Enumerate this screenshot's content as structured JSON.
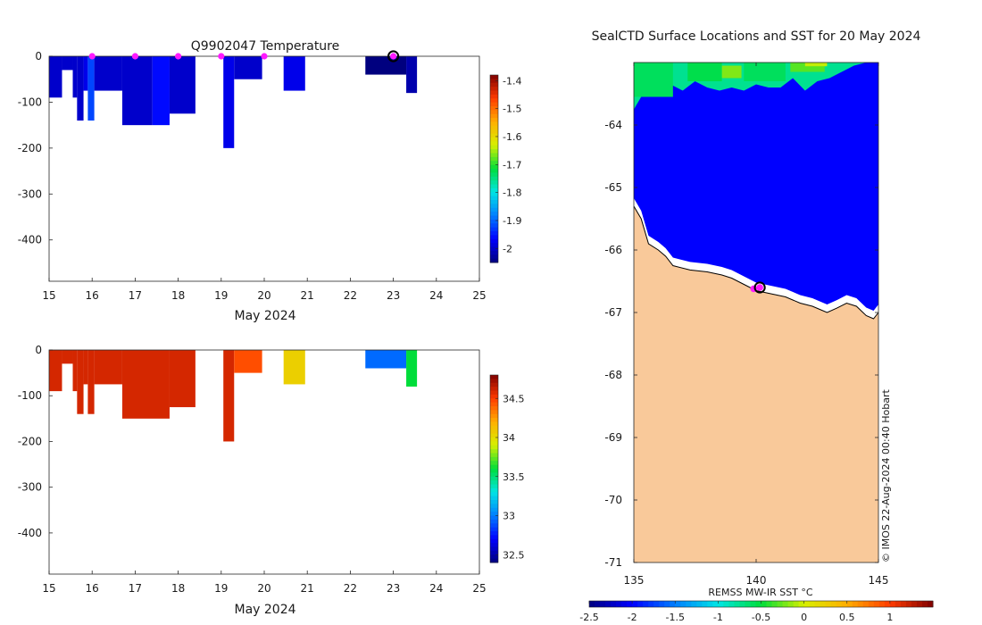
{
  "chart_data": [
    {
      "type": "heatmap",
      "title": "Q9902047  Temperature",
      "xlabel": "May 2024",
      "x_ticks": [
        15,
        16,
        17,
        18,
        19,
        20,
        21,
        22,
        23,
        24,
        25
      ],
      "xlim": [
        15,
        25
      ],
      "ylim": [
        -490,
        0
      ],
      "y_ticks": [
        0,
        -100,
        -200,
        -300,
        -400
      ],
      "colorbar": {
        "vmin": -2.05,
        "vmax": -1.38,
        "ticks": [
          -1.4,
          -1.5,
          -1.6,
          -1.7,
          -1.8,
          -1.9,
          -2
        ]
      },
      "profile_markers": [
        16,
        17,
        18,
        19,
        20
      ],
      "current_marker": 23,
      "marker_color": "#ff1aff",
      "cells": [
        {
          "x0": 15.0,
          "x1": 15.3,
          "depth": 90,
          "value": -2.0
        },
        {
          "x0": 15.3,
          "x1": 15.55,
          "depth": 30,
          "value": -2.0
        },
        {
          "x0": 15.55,
          "x1": 15.65,
          "depth": 90,
          "value": -2.0
        },
        {
          "x0": 15.65,
          "x1": 15.8,
          "depth": 140,
          "value": -2.0
        },
        {
          "x0": 15.8,
          "x1": 15.9,
          "depth": 75,
          "value": -1.98
        },
        {
          "x0": 15.9,
          "x1": 16.05,
          "depth": 140,
          "value": -1.92
        },
        {
          "x0": 16.05,
          "x1": 16.7,
          "depth": 75,
          "value": -2.0
        },
        {
          "x0": 16.7,
          "x1": 17.4,
          "depth": 150,
          "value": -2.0
        },
        {
          "x0": 17.4,
          "x1": 17.8,
          "depth": 150,
          "value": -1.96
        },
        {
          "x0": 17.8,
          "x1": 18.4,
          "depth": 125,
          "value": -2.0
        },
        {
          "x0": 19.05,
          "x1": 19.3,
          "depth": 200,
          "value": -1.98
        },
        {
          "x0": 19.3,
          "x1": 19.95,
          "depth": 50,
          "value": -2.0
        },
        {
          "x0": 20.45,
          "x1": 20.95,
          "depth": 75,
          "value": -1.98
        },
        {
          "x0": 22.35,
          "x1": 23.3,
          "depth": 40,
          "value": -2.05
        },
        {
          "x0": 23.3,
          "x1": 23.55,
          "depth": 80,
          "value": -2.02
        }
      ]
    },
    {
      "type": "heatmap",
      "title": "",
      "xlabel": "May 2024",
      "x_ticks": [
        15,
        16,
        17,
        18,
        19,
        20,
        21,
        22,
        23,
        24,
        25
      ],
      "xlim": [
        15,
        25
      ],
      "ylim": [
        -490,
        0
      ],
      "y_ticks": [
        0,
        -100,
        -200,
        -300,
        -400
      ],
      "colorbar": {
        "vmin": 32.4,
        "vmax": 34.8,
        "ticks": [
          34.5,
          34,
          33.5,
          33,
          32.5
        ]
      },
      "cells": [
        {
          "x0": 15.0,
          "x1": 15.3,
          "depth": 90,
          "value": 34.6
        },
        {
          "x0": 15.3,
          "x1": 15.55,
          "depth": 30,
          "value": 34.6
        },
        {
          "x0": 15.55,
          "x1": 15.65,
          "depth": 90,
          "value": 34.6
        },
        {
          "x0": 15.65,
          "x1": 15.8,
          "depth": 140,
          "value": 34.6
        },
        {
          "x0": 15.8,
          "x1": 15.9,
          "depth": 75,
          "value": 34.6
        },
        {
          "x0": 15.9,
          "x1": 16.05,
          "depth": 140,
          "value": 34.6
        },
        {
          "x0": 16.05,
          "x1": 16.7,
          "depth": 75,
          "value": 34.6
        },
        {
          "x0": 16.7,
          "x1": 17.8,
          "depth": 150,
          "value": 34.6
        },
        {
          "x0": 17.8,
          "x1": 18.4,
          "depth": 125,
          "value": 34.6
        },
        {
          "x0": 19.05,
          "x1": 19.3,
          "depth": 200,
          "value": 34.6
        },
        {
          "x0": 19.3,
          "x1": 19.95,
          "depth": 50,
          "value": 34.45
        },
        {
          "x0": 20.45,
          "x1": 20.95,
          "depth": 75,
          "value": 34.05
        },
        {
          "x0": 22.35,
          "x1": 23.3,
          "depth": 40,
          "value": 32.95
        },
        {
          "x0": 23.3,
          "x1": 23.55,
          "depth": 80,
          "value": 33.6
        }
      ]
    },
    {
      "type": "heatmap",
      "title": "SealCTD Surface Locations and SST for 20 May 2024",
      "xlim": [
        135,
        145
      ],
      "ylim": [
        -71,
        -63
      ],
      "x_ticks": [
        135,
        140,
        145
      ],
      "y_ticks": [
        -64,
        -65,
        -66,
        -67,
        -68,
        -69,
        -70,
        -71
      ],
      "colorbar_label": "REMSS MW-IR SST °C",
      "colorbar": {
        "vmin": -2.5,
        "vmax": 1.5,
        "ticks": [
          "-2.5",
          "-2",
          "-1.5",
          "-1",
          "-0.5",
          "0",
          "0.5",
          "1"
        ]
      },
      "ocean_value": -2.0,
      "land_color": "#f9c99a",
      "credit": "© IMOS 22-Aug-2024 00:40 Hobart",
      "coastline": [
        [
          135.0,
          -65.3
        ],
        [
          135.3,
          -65.5
        ],
        [
          135.6,
          -65.9
        ],
        [
          136.0,
          -66.0
        ],
        [
          136.3,
          -66.1
        ],
        [
          136.6,
          -66.25
        ],
        [
          137.3,
          -66.32
        ],
        [
          138.0,
          -66.35
        ],
        [
          138.6,
          -66.4
        ],
        [
          139.0,
          -66.45
        ],
        [
          139.5,
          -66.55
        ],
        [
          140.0,
          -66.65
        ],
        [
          140.6,
          -66.7
        ],
        [
          141.2,
          -66.75
        ],
        [
          141.8,
          -66.85
        ],
        [
          142.3,
          -66.9
        ],
        [
          142.6,
          -66.95
        ],
        [
          142.9,
          -67.0
        ],
        [
          143.3,
          -66.93
        ],
        [
          143.7,
          -66.85
        ],
        [
          144.1,
          -66.9
        ],
        [
          144.5,
          -67.05
        ],
        [
          144.8,
          -67.1
        ],
        [
          145.0,
          -67.0
        ]
      ],
      "warm_edge": [
        [
          135.0,
          -63.75
        ],
        [
          135.3,
          -63.55
        ],
        [
          135.6,
          -63.45
        ],
        [
          136.0,
          -63.45
        ],
        [
          136.5,
          -63.35
        ],
        [
          137.0,
          -63.45
        ],
        [
          137.5,
          -63.3
        ],
        [
          138.0,
          -63.4
        ],
        [
          138.5,
          -63.45
        ],
        [
          139.0,
          -63.4
        ],
        [
          139.5,
          -63.45
        ],
        [
          140.0,
          -63.35
        ],
        [
          140.5,
          -63.4
        ],
        [
          141.0,
          -63.4
        ],
        [
          141.5,
          -63.25
        ],
        [
          142.0,
          -63.45
        ],
        [
          142.5,
          -63.3
        ],
        [
          143.0,
          -63.25
        ],
        [
          143.5,
          -63.15
        ],
        [
          144.0,
          -63.05
        ],
        [
          144.5,
          -63.0
        ],
        [
          145.0,
          -63.0
        ]
      ],
      "warm_patches": [
        {
          "lon0": 135.0,
          "lon1": 136.6,
          "lat0": -63.0,
          "lat1": -63.55,
          "value": -0.6
        },
        {
          "lon0": 137.2,
          "lon1": 138.6,
          "lat0": -63.0,
          "lat1": -63.3,
          "value": -0.55
        },
        {
          "lon0": 138.6,
          "lon1": 139.4,
          "lat0": -63.05,
          "lat1": -63.25,
          "value": -0.2
        },
        {
          "lon0": 139.5,
          "lon1": 141.2,
          "lat0": -63.0,
          "lat1": -63.3,
          "value": -0.6
        },
        {
          "lon0": 141.4,
          "lon1": 142.8,
          "lat0": -63.0,
          "lat1": -63.15,
          "value": -0.3
        },
        {
          "lon0": 142.0,
          "lon1": 142.9,
          "lat0": -63.0,
          "lat1": -63.06,
          "value": -0.05
        }
      ],
      "positions": [
        {
          "lon": 139.9,
          "lat": -66.62
        },
        {
          "lon": 140.15,
          "lat": -66.6
        }
      ],
      "current_position": {
        "lon": 140.15,
        "lat": -66.6
      }
    }
  ]
}
